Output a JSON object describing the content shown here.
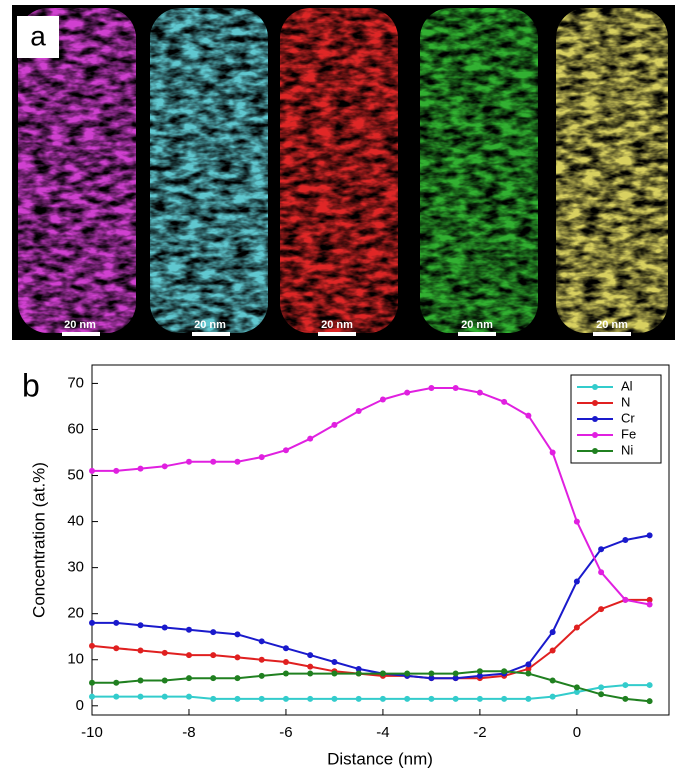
{
  "panel_a": {
    "label": "a",
    "scale_bars": [
      "20 nm",
      "20 nm",
      "20 nm",
      "20 nm",
      "20 nm"
    ]
  },
  "chart_data": {
    "type": "line",
    "panel_label": "b",
    "x_label": "Distance (nm)",
    "y_label": "Concentration (at.%)",
    "x": [
      -10,
      -9.5,
      -9,
      -8.5,
      -8,
      -7.5,
      -7,
      -6.5,
      -6,
      -5.5,
      -5,
      -4.5,
      -4,
      -3.5,
      -3,
      -2.5,
      -2,
      -1.5,
      -1,
      -0.5,
      0,
      0.5,
      1,
      1.5
    ],
    "series": [
      {
        "name": "Al",
        "color": "#33cccc",
        "values": [
          2,
          2,
          2,
          2,
          2,
          1.5,
          1.5,
          1.5,
          1.5,
          1.5,
          1.5,
          1.5,
          1.5,
          1.5,
          1.5,
          1.5,
          1.5,
          1.5,
          1.5,
          2,
          3,
          4,
          4.5,
          4.5
        ]
      },
      {
        "name": "N",
        "color": "#e02020",
        "values": [
          13,
          12.5,
          12,
          11.5,
          11,
          11,
          10.5,
          10,
          9.5,
          8.5,
          7.5,
          7,
          6.5,
          6.5,
          6,
          6,
          6,
          6.5,
          8,
          12,
          17,
          21,
          23,
          23
        ]
      },
      {
        "name": "Cr",
        "color": "#1a1acc",
        "values": [
          18,
          18,
          17.5,
          17,
          16.5,
          16,
          15.5,
          14,
          12.5,
          11,
          9.5,
          8,
          7,
          6.5,
          6,
          6,
          6.5,
          7,
          9,
          16,
          27,
          34,
          36,
          37
        ]
      },
      {
        "name": "Fe",
        "color": "#e020e0",
        "values": [
          51,
          51,
          51.5,
          52,
          53,
          53,
          53,
          54,
          55.5,
          58,
          61,
          64,
          66.5,
          68,
          69,
          69,
          68,
          66,
          63,
          55,
          40,
          29,
          23,
          22
        ]
      },
      {
        "name": "Ni",
        "color": "#208020",
        "values": [
          5,
          5,
          5.5,
          5.5,
          6,
          6,
          6,
          6.5,
          7,
          7,
          7,
          7,
          7,
          7,
          7,
          7,
          7.5,
          7.5,
          7,
          5.5,
          4,
          2.5,
          1.5,
          1
        ]
      }
    ],
    "xlim": [
      -10,
      1.9
    ],
    "xticks": [
      -10,
      -8,
      -6,
      -4,
      -2,
      0
    ],
    "ylim": [
      -2,
      74
    ],
    "yticks": [
      0,
      10,
      20,
      30,
      40,
      50,
      60,
      70
    ],
    "legend": "top-right"
  }
}
